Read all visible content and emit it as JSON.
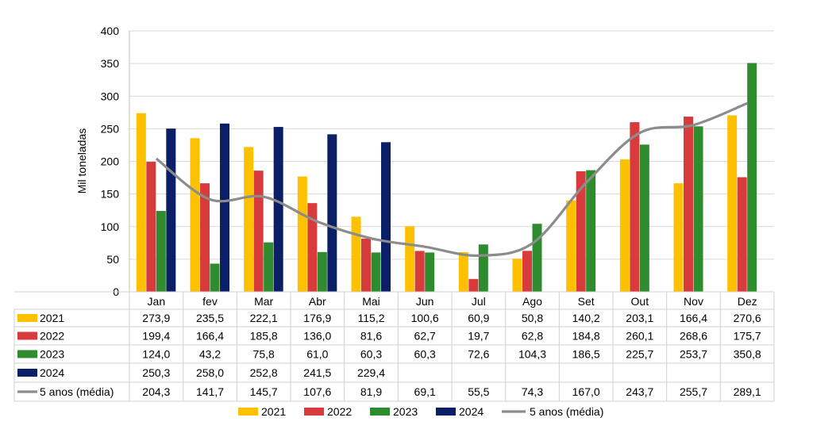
{
  "chart_data": {
    "type": "bar",
    "ylabel": "Mil toneladas",
    "ylim": [
      0,
      400
    ],
    "yticks": [
      0,
      50,
      100,
      150,
      200,
      250,
      300,
      350,
      400
    ],
    "grid": true,
    "legend_position": "bottom",
    "categories": [
      "Jan",
      "fev",
      "Mar",
      "Abr",
      "Mai",
      "Jun",
      "Jul",
      "Ago",
      "Set",
      "Out",
      "Nov",
      "Dez"
    ],
    "series": [
      {
        "name": "2021",
        "type": "bar",
        "color": "#FFC000",
        "values": [
          273.9,
          235.5,
          222.1,
          176.9,
          115.2,
          100.6,
          60.9,
          50.8,
          140.2,
          203.1,
          166.4,
          270.6
        ],
        "labels": [
          "273,9",
          "235,5",
          "222,1",
          "176,9",
          "115,2",
          "100,6",
          "60,9",
          "50,8",
          "140,2",
          "203,1",
          "166,4",
          "270,6"
        ]
      },
      {
        "name": "2022",
        "type": "bar",
        "color": "#D83B3B",
        "values": [
          199.4,
          166.4,
          185.8,
          136.0,
          81.6,
          62.7,
          19.7,
          62.8,
          184.8,
          260.1,
          268.6,
          175.7
        ],
        "labels": [
          "199,4",
          "166,4",
          "185,8",
          "136,0",
          "81,6",
          "62,7",
          "19,7",
          "62,8",
          "184,8",
          "260,1",
          "268,6",
          "175,7"
        ]
      },
      {
        "name": "2023",
        "type": "bar",
        "color": "#2E8B2E",
        "values": [
          124.0,
          43.2,
          75.8,
          61.0,
          60.3,
          60.3,
          72.6,
          104.3,
          186.5,
          225.7,
          253.7,
          350.8
        ],
        "labels": [
          "124,0",
          "43,2",
          "75,8",
          "61,0",
          "60,3",
          "60,3",
          "72,6",
          "104,3",
          "186,5",
          "225,7",
          "253,7",
          "350,8"
        ]
      },
      {
        "name": "2024",
        "type": "bar",
        "color": "#0B1F66",
        "values": [
          250.3,
          258.0,
          252.8,
          241.5,
          229.4,
          null,
          null,
          null,
          null,
          null,
          null,
          null
        ],
        "labels": [
          "250,3",
          "258,0",
          "252,8",
          "241,5",
          "229,4",
          "",
          "",
          "",
          "",
          "",
          "",
          ""
        ]
      },
      {
        "name": "5 anos (média)",
        "type": "line",
        "color": "#8C8C8C",
        "values": [
          204.3,
          141.7,
          145.7,
          107.6,
          81.9,
          69.1,
          55.5,
          74.3,
          167.0,
          243.7,
          255.7,
          289.1
        ],
        "labels": [
          "204,3",
          "141,7",
          "145,7",
          "107,6",
          "81,9",
          "69,1",
          "55,5",
          "74,3",
          "167,0",
          "243,7",
          "255,7",
          "289,1"
        ]
      }
    ]
  }
}
